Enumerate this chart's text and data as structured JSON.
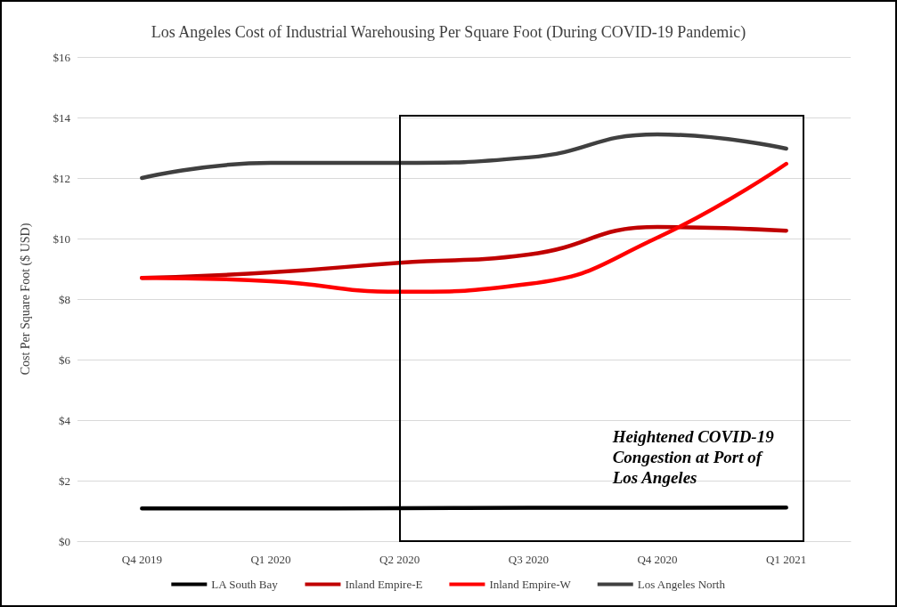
{
  "chart_data": {
    "type": "line",
    "title": "Los Angeles Cost of Industrial Warehousing Per Square Foot (During COVID-19 Pandemic)",
    "ylabel": "Cost Per Square Foot ($ USD)",
    "categories": [
      "Q4 2019",
      "Q1 2020",
      "Q2 2020",
      "Q3 2020",
      "Q4 2020",
      "Q1 2021"
    ],
    "series": [
      {
        "name": "LA South Bay",
        "color": "#000000",
        "values": [
          1.08,
          1.08,
          1.09,
          1.1,
          1.1,
          1.11
        ]
      },
      {
        "name": "Inland Empire-E",
        "color": "#c00000",
        "values": [
          8.7,
          8.88,
          9.2,
          9.47,
          10.38,
          10.26
        ]
      },
      {
        "name": "Inland Empire-W",
        "color": "#ff0000",
        "values": [
          8.7,
          8.59,
          8.24,
          8.5,
          10.03,
          12.47
        ]
      },
      {
        "name": "Los Angeles North",
        "color": "#404040",
        "values": [
          12.0,
          12.5,
          12.5,
          12.68,
          13.44,
          12.97
        ]
      }
    ],
    "ylim": [
      0,
      16
    ],
    "yticks": [
      {
        "value": 0,
        "label": "$0"
      },
      {
        "value": 2,
        "label": "$2"
      },
      {
        "value": 4,
        "label": "$4"
      },
      {
        "value": 6,
        "label": "$6"
      },
      {
        "value": 8,
        "label": "$8"
      },
      {
        "value": 10,
        "label": "$10"
      },
      {
        "value": 12,
        "label": "$12"
      },
      {
        "value": 14,
        "label": "$14"
      },
      {
        "value": 16,
        "label": "$16"
      }
    ],
    "annotations": [
      "Heightened COVID-19 Congestion at Port of Los Angeles"
    ],
    "grid": "y",
    "legend": "bottom",
    "marker": "none",
    "line_style": "solid"
  }
}
